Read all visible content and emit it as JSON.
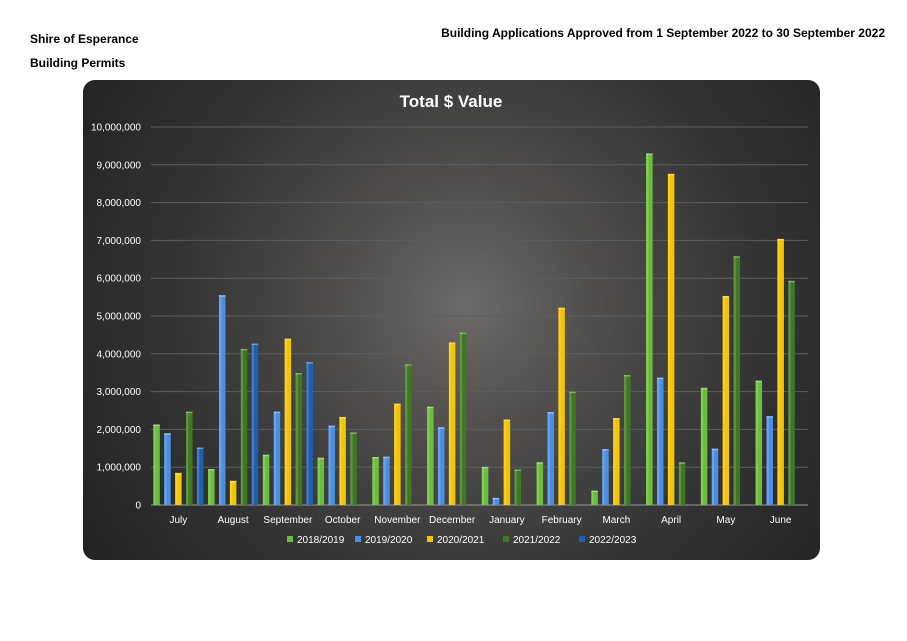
{
  "header": {
    "organisation": "Shire of Esperance",
    "section": "Building Permits",
    "period": "Building Applications Approved from 1 September 2022 to 30 September 2022"
  },
  "chart_data": {
    "type": "bar",
    "title": "Total $ Value",
    "xlabel": "",
    "ylabel": "",
    "ylim": [
      0,
      10000000
    ],
    "yticks": [
      "0",
      "1,000,000",
      "2,000,000",
      "3,000,000",
      "4,000,000",
      "5,000,000",
      "6,000,000",
      "7,000,000",
      "8,000,000",
      "9,000,000",
      "10,000,000"
    ],
    "categories": [
      "July",
      "August",
      "September",
      "October",
      "November",
      "December",
      "January",
      "February",
      "March",
      "April",
      "May",
      "June"
    ],
    "grid": true,
    "legend_position": "bottom",
    "series": [
      {
        "name": "2018/2019",
        "color": "#6abf3a",
        "values": [
          2130000,
          950000,
          1330000,
          1250000,
          1270000,
          2600000,
          1010000,
          1130000,
          380000,
          9300000,
          3100000,
          3290000
        ]
      },
      {
        "name": "2019/2020",
        "color": "#4a90e2",
        "values": [
          1900000,
          5550000,
          2470000,
          2100000,
          1280000,
          2060000,
          190000,
          2460000,
          1480000,
          3370000,
          1490000,
          2350000
        ]
      },
      {
        "name": "2020/2021",
        "color": "#f5c400",
        "values": [
          850000,
          640000,
          4400000,
          2330000,
          2680000,
          4300000,
          2260000,
          5220000,
          2300000,
          8760000,
          5530000,
          7040000
        ]
      },
      {
        "name": "2021/2022",
        "color": "#3d7a1f",
        "values": [
          2470000,
          4130000,
          3490000,
          1920000,
          3720000,
          4560000,
          940000,
          3000000,
          3440000,
          1130000,
          6580000,
          5930000
        ]
      },
      {
        "name": "2022/2023",
        "color": "#1e5fb4",
        "values": [
          1520000,
          4270000,
          3780000,
          null,
          null,
          null,
          null,
          null,
          null,
          null,
          null,
          null
        ]
      }
    ]
  }
}
